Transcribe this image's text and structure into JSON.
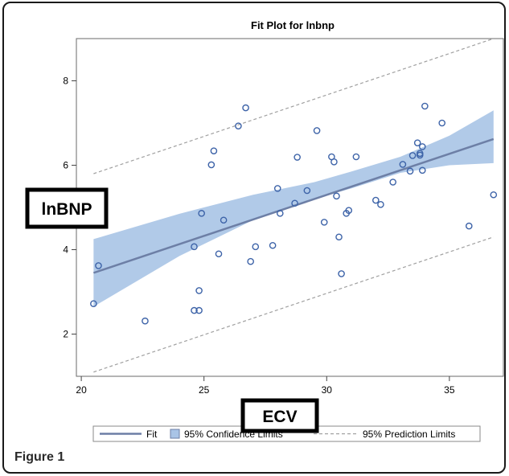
{
  "figure": {
    "caption": "Figure 1"
  },
  "chart_data": {
    "type": "scatter",
    "title": "Fit Plot for lnbnp",
    "xlabel": "ECV",
    "ylabel": "lnBNP",
    "xlim": [
      19.8,
      37.2
    ],
    "ylim": [
      1.0,
      9.0
    ],
    "xticks": [
      20,
      25,
      30,
      35
    ],
    "yticks": [
      2,
      4,
      6,
      8
    ],
    "grid": false,
    "legend_position": "bottom",
    "colors": {
      "points": "#3d63a8",
      "fit": "#6d7fa6",
      "confidence": "#a9c4e6",
      "prediction": "#a0a0a0"
    },
    "fit_line": {
      "x": [
        20.5,
        36.8
      ],
      "y": [
        3.45,
        6.62
      ]
    },
    "confidence_band": {
      "x": [
        20.5,
        24,
        27,
        29.5,
        31,
        33,
        35,
        36.8
      ],
      "lower": [
        2.65,
        3.85,
        4.7,
        5.2,
        5.45,
        5.82,
        6.0,
        6.05
      ],
      "upper": [
        4.25,
        4.85,
        5.3,
        5.6,
        5.85,
        6.2,
        6.7,
        7.3
      ]
    },
    "prediction_limits": {
      "x": [
        20.5,
        36.8
      ],
      "lower": [
        1.1,
        4.3
      ],
      "upper": [
        5.8,
        9.0
      ]
    },
    "points": {
      "x": [
        20.5,
        20.7,
        22.6,
        24.6,
        24.6,
        24.8,
        24.8,
        24.9,
        25.3,
        25.4,
        25.6,
        25.8,
        26.4,
        26.7,
        26.9,
        27.1,
        27.8,
        28.0,
        28.1,
        28.7,
        28.8,
        29.2,
        29.6,
        29.9,
        30.2,
        30.3,
        30.4,
        30.5,
        30.6,
        30.8,
        30.9,
        31.2,
        32.0,
        32.2,
        32.7,
        33.1,
        33.4,
        33.5,
        33.7,
        33.8,
        33.8,
        33.9,
        33.9,
        34.0,
        34.7,
        35.8,
        36.8
      ],
      "y": [
        2.72,
        3.62,
        2.31,
        2.56,
        4.07,
        2.56,
        3.03,
        4.86,
        6.01,
        6.34,
        3.9,
        4.7,
        6.93,
        7.36,
        3.72,
        4.07,
        4.1,
        5.45,
        4.86,
        5.1,
        6.19,
        5.4,
        6.82,
        4.65,
        6.2,
        6.08,
        5.27,
        4.3,
        3.43,
        4.86,
        4.93,
        6.2,
        5.17,
        5.07,
        5.6,
        6.02,
        5.86,
        6.23,
        6.53,
        6.24,
        6.28,
        5.88,
        6.44,
        7.4,
        7.0,
        4.56,
        5.3
      ]
    },
    "legend": {
      "fit": "Fit",
      "confidence": "95% Confidence Limits",
      "prediction": "95% Prediction Limits"
    }
  }
}
